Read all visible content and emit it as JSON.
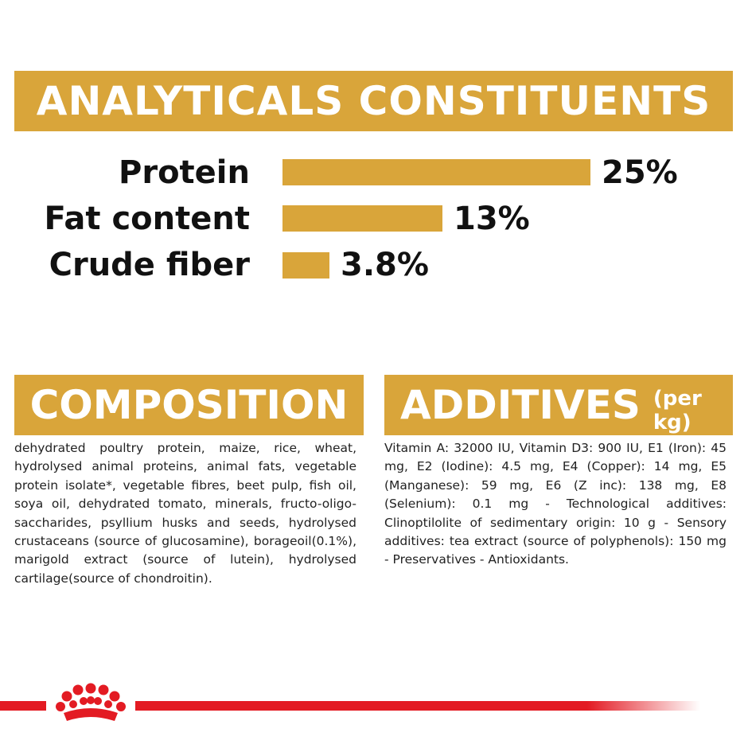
{
  "analytical": {
    "title": "ANALYTICALS CONSTITUENTS",
    "rows": [
      {
        "label": "Protein",
        "value": "25%",
        "percent": 25
      },
      {
        "label": "Fat content",
        "value": "13%",
        "percent": 13
      },
      {
        "label": "Crude fiber",
        "value": "3.8%",
        "percent": 3.8
      }
    ]
  },
  "composition": {
    "title": "COMPOSITION",
    "text": "dehydrated poultry protein, maize, rice, wheat, hydrolysed animal proteins, animal fats, vegetable protein isolate*, vegetable fibres, beet pulp, fish oil, soya oil, dehydrated tomato, minerals, fructo-oligo-saccharides, psyllium husks and seeds, hydrolysed crustaceans (source of glucosamine), borageoil(0.1%), marigold extract (source of lutein), hydrolysed cartilage(source of chondroitin)."
  },
  "additives": {
    "title": "ADDITIVES",
    "subtitle": "(per kg)",
    "text": "Vitamin A: 32000 IU, Vitamin D3: 900 IU, E1 (Iron): 45 mg, E2 (Iodine): 4.5 mg, E4 (Copper): 14 mg, E5 (Manganese): 59 mg, E6 (Z inc): 138 mg, E8 (Selenium): 0.1 mg - Technological additives: Clinoptilolite of sedimentary origin: 10 g - Sensory additives: tea extract (source of polyphenols): 150 mg - Preservatives - Antioxidants."
  },
  "colors": {
    "accent": "#d9a53a",
    "brand_red": "#e31b23"
  },
  "footer": {
    "logo_icon": "royal-canin-crown-icon"
  }
}
